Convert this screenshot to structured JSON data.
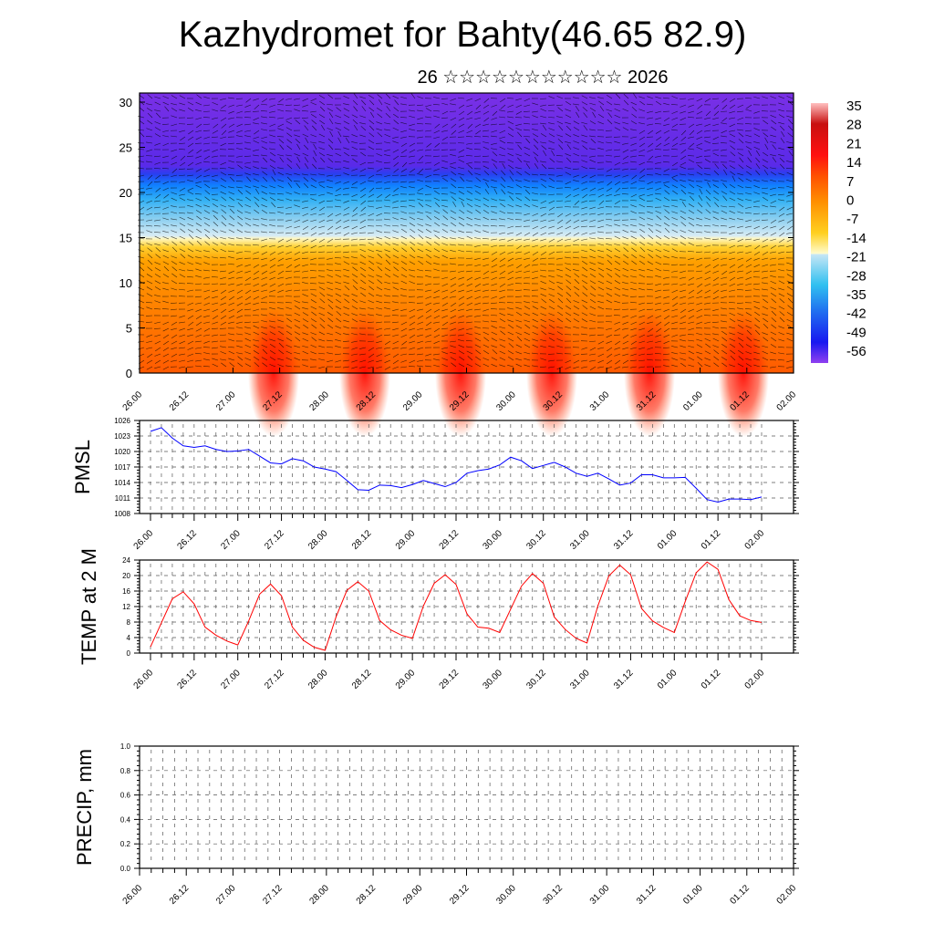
{
  "title": "Kazhydromet for Bahty(46.65 82.9)",
  "subtitle": "26 ☆☆☆☆☆☆☆☆☆☆☆ 2026",
  "time_labels": [
    "26.00",
    "26.12",
    "27.00",
    "27.12",
    "28.00",
    "28.12",
    "29.00",
    "29.12",
    "30.00",
    "30.12",
    "31.00",
    "31.12",
    "01.00",
    "01.12",
    "02.00"
  ],
  "chart_data": [
    {
      "type": "heatmap",
      "name": "Temperature and wind cross-section",
      "ylabel": "",
      "ylim": [
        0,
        30
      ],
      "yticks": [
        "0",
        "5",
        "10",
        "15",
        "20",
        "25",
        "30"
      ],
      "colorbar": {
        "labels": [
          "35",
          "28",
          "21",
          "14",
          "7",
          "0",
          "-7",
          "-14",
          "-21",
          "-28",
          "-35",
          "-42",
          "-49",
          "-56"
        ],
        "colors": [
          "#ffb0b0",
          "#d01010",
          "#ff1010",
          "#ff4a00",
          "#ff8a00",
          "#ffb000",
          "#ffe040",
          "#fffcd0",
          "#c8e6f5",
          "#40c0f0",
          "#1090ff",
          "#3060f0",
          "#2020f0",
          "#8030f0"
        ]
      }
    },
    {
      "type": "line",
      "name": "PMSL",
      "ylabel": "PMSL",
      "ylim": [
        1008,
        1026
      ],
      "yticks": [
        "1008",
        "1011",
        "1014",
        "1017",
        "1020",
        "1023",
        "1026"
      ],
      "color": "#0000ff",
      "step_hours": 3,
      "values": [
        1023.9,
        1024.6,
        1022.6,
        1021.1,
        1020.8,
        1021.1,
        1020.4,
        1020.0,
        1020.1,
        1020.4,
        1019.1,
        1017.8,
        1017.6,
        1018.6,
        1018.2,
        1017.0,
        1016.6,
        1016.1,
        1014.4,
        1012.6,
        1012.5,
        1013.5,
        1013.4,
        1013.0,
        1013.6,
        1014.4,
        1013.8,
        1013.2,
        1014.0,
        1015.8,
        1016.3,
        1016.6,
        1017.4,
        1018.9,
        1018.2,
        1016.7,
        1017.3,
        1017.9,
        1017.0,
        1015.8,
        1015.2,
        1015.8,
        1014.7,
        1013.5,
        1013.9,
        1015.5,
        1015.5,
        1014.9,
        1014.9,
        1015.0,
        1012.9,
        1010.7,
        1010.2,
        1010.8,
        1010.8,
        1010.7,
        1011.2
      ]
    },
    {
      "type": "line",
      "name": "TEMP at 2 M",
      "ylabel": "TEMP at 2 M",
      "ylim": [
        0,
        24
      ],
      "yticks": [
        "0",
        "4",
        "8",
        "12",
        "16",
        "20",
        "24"
      ],
      "color": "#ff0000",
      "step_hours": 3,
      "values": [
        1.6,
        7.8,
        14.0,
        15.8,
        12.7,
        6.7,
        4.6,
        3.1,
        2.1,
        8.3,
        15.2,
        17.8,
        14.8,
        6.7,
        3.3,
        1.5,
        0.7,
        9.3,
        16.2,
        18.4,
        16.0,
        8.4,
        6.0,
        4.6,
        3.8,
        12.1,
        18.0,
        20.2,
        17.7,
        10.1,
        6.7,
        6.4,
        5.3,
        11.3,
        17.3,
        20.5,
        18.0,
        9.3,
        6.1,
        3.8,
        2.6,
        12.2,
        19.9,
        22.7,
        20.2,
        11.5,
        8.3,
        6.6,
        5.3,
        13.3,
        20.7,
        23.5,
        21.6,
        13.8,
        9.6,
        8.4,
        7.9
      ]
    },
    {
      "type": "line",
      "name": "PRECIP, mm",
      "ylabel": "PRECIP, mm",
      "ylim": [
        0,
        1
      ],
      "yticks": [
        "0.0",
        "0.2",
        "0.4",
        "0.6",
        "0.8",
        "1.0"
      ],
      "color": "#00a000",
      "step_hours": 3,
      "values": []
    }
  ]
}
